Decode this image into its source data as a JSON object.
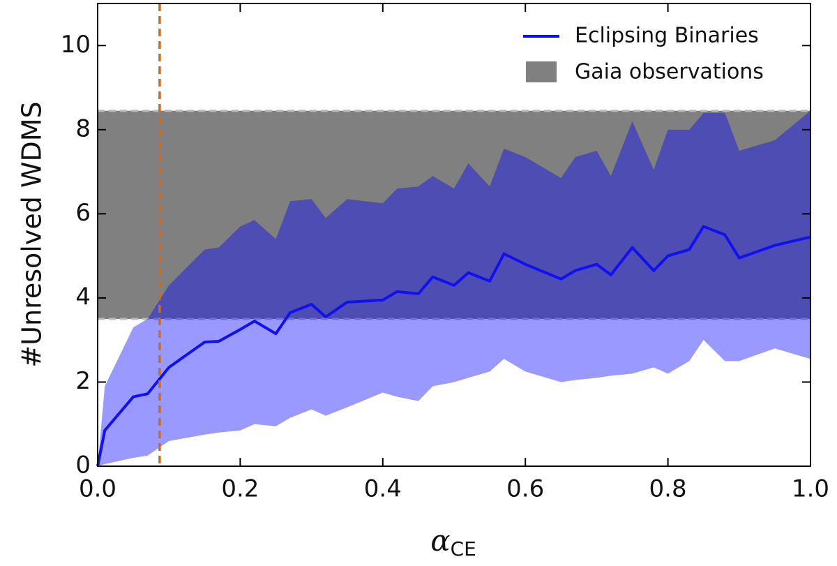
{
  "chart_data": {
    "type": "line",
    "ylabel": "#Unresolved WDMS",
    "xlabel": {
      "symbol": "α",
      "subscript": "CE"
    },
    "x": [
      0.0,
      0.01,
      0.05,
      0.07,
      0.1,
      0.15,
      0.17,
      0.2,
      0.22,
      0.25,
      0.27,
      0.3,
      0.32,
      0.35,
      0.4,
      0.42,
      0.45,
      0.47,
      0.5,
      0.52,
      0.55,
      0.57,
      0.6,
      0.65,
      0.67,
      0.7,
      0.72,
      0.75,
      0.78,
      0.8,
      0.83,
      0.85,
      0.88,
      0.9,
      0.95,
      1.0
    ],
    "series": [
      {
        "name": "Eclipsing Binaries",
        "color": "#1010f0",
        "values": [
          0,
          0.85,
          1.65,
          1.72,
          2.35,
          2.95,
          2.97,
          3.25,
          3.45,
          3.15,
          3.65,
          3.85,
          3.55,
          3.9,
          3.95,
          4.15,
          4.1,
          4.5,
          4.3,
          4.6,
          4.4,
          5.05,
          4.8,
          4.45,
          4.65,
          4.8,
          4.55,
          5.2,
          4.65,
          5.0,
          5.15,
          5.7,
          5.5,
          4.95,
          5.25,
          5.45
        ],
        "upper": [
          0,
          1.9,
          3.3,
          3.5,
          4.3,
          5.15,
          5.2,
          5.7,
          5.85,
          5.4,
          6.3,
          6.35,
          5.9,
          6.35,
          6.25,
          6.6,
          6.65,
          6.9,
          6.6,
          7.2,
          6.65,
          7.55,
          7.35,
          6.85,
          7.35,
          7.5,
          6.9,
          8.2,
          7.05,
          8.0,
          8.0,
          8.4,
          8.4,
          7.5,
          7.75,
          8.45
        ],
        "lower": [
          0,
          0.05,
          0.2,
          0.25,
          0.6,
          0.75,
          0.8,
          0.85,
          1.0,
          0.95,
          1.15,
          1.35,
          1.2,
          1.4,
          1.75,
          1.65,
          1.55,
          1.9,
          2.0,
          2.1,
          2.25,
          2.55,
          2.25,
          2.0,
          2.05,
          2.1,
          2.15,
          2.2,
          2.35,
          2.2,
          2.5,
          3.0,
          2.5,
          2.5,
          2.8,
          2.55
        ],
        "band_color": "#0000ff",
        "band_opacity": 0.4
      }
    ],
    "bands": [
      {
        "name": "Gaia observations",
        "range": [
          3.5,
          8.45
        ],
        "color": "#808080"
      }
    ],
    "vlines": [
      {
        "x": 0.087,
        "color": "#cc6b1a"
      }
    ],
    "xlim": [
      0,
      1
    ],
    "ylim": [
      0,
      11
    ],
    "xticks": [
      {
        "value": 0,
        "label": "0.0"
      },
      0.2,
      0.4,
      0.6,
      0.8,
      {
        "value": 1,
        "label": "1.0"
      }
    ],
    "yticks": [
      0,
      2,
      4,
      6,
      8,
      10
    ],
    "legend": "upper right"
  }
}
